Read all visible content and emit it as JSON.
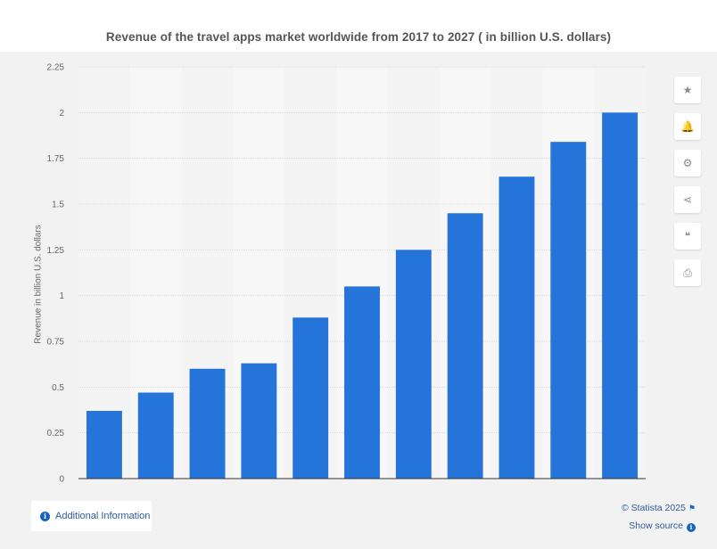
{
  "chart_data": {
    "type": "bar",
    "title": "Revenue of the travel apps market worldwide from 2017 to 2027 ( in billion U.S. dollars)",
    "xlabel": "",
    "ylabel": "Revenue in billion U.S. dollars",
    "categories": [
      "",
      "",
      "",
      "",
      "",
      "",
      "",
      "",
      "",
      "",
      ""
    ],
    "values": [
      0.37,
      0.47,
      0.6,
      0.63,
      0.88,
      1.05,
      1.25,
      1.45,
      1.65,
      1.84,
      2.0
    ],
    "ylim": [
      0,
      2.25
    ],
    "yticks": [
      "0",
      "0.25",
      "0.5",
      "0.75",
      "1",
      "1.25",
      "1.5",
      "1.75",
      "2",
      "2.25"
    ],
    "grid": true,
    "bar_color": "#2574d9"
  },
  "toolbar": {
    "buttons": [
      {
        "name": "star-icon",
        "glyph": "★"
      },
      {
        "name": "bell-icon",
        "glyph": "🔔"
      },
      {
        "name": "gear-icon",
        "glyph": "⚙"
      },
      {
        "name": "share-icon",
        "glyph": "⋖"
      },
      {
        "name": "quote-icon",
        "glyph": "❝"
      },
      {
        "name": "print-icon",
        "glyph": "⎙"
      }
    ]
  },
  "footer": {
    "additional_info": "Additional Information",
    "copyright": "© Statista 2025",
    "show_source": "Show source"
  }
}
